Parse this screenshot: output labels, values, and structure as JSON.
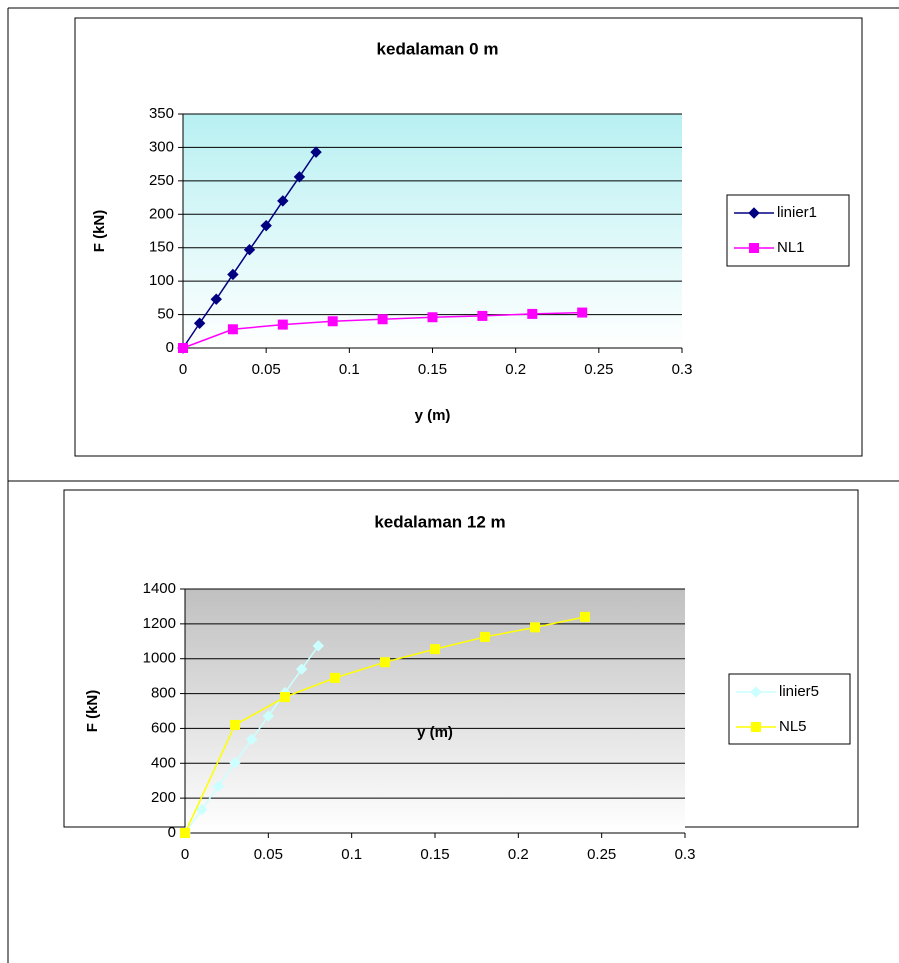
{
  "chart_data": [
    {
      "type": "line",
      "title": "kedalaman 0 m",
      "x_label": "y (m)",
      "y_label": "F (kN)",
      "xlim": [
        0,
        0.3
      ],
      "xticks": [
        0,
        0.05,
        0.1,
        0.15,
        0.2,
        0.25,
        0.3
      ],
      "ylim": [
        0,
        350
      ],
      "yticks": [
        0,
        50,
        100,
        150,
        200,
        250,
        300,
        350
      ],
      "grid": true,
      "legend": "right",
      "series": [
        {
          "name": "linier1",
          "color": "#000080",
          "marker": "diamond",
          "x": [
            0,
            0.01,
            0.02,
            0.03,
            0.04,
            0.05,
            0.06,
            0.07,
            0.08
          ],
          "values": [
            0,
            37,
            73,
            110,
            147,
            183,
            220,
            256,
            293
          ]
        },
        {
          "name": "NL1",
          "color": "#ff00ff",
          "marker": "square",
          "x": [
            0,
            0.03,
            0.06,
            0.09,
            0.12,
            0.15,
            0.18,
            0.21,
            0.24
          ],
          "values": [
            0,
            28,
            35,
            40,
            43,
            46,
            48,
            51,
            53
          ]
        }
      ]
    },
    {
      "type": "line",
      "title": "kedalaman 12 m",
      "x_label": "y (m)",
      "y_label": "F (kN)",
      "xlim": [
        0,
        0.3
      ],
      "xticks": [
        0,
        0.05,
        0.1,
        0.15,
        0.2,
        0.25,
        0.3
      ],
      "ylim": [
        0,
        1400
      ],
      "yticks": [
        0,
        200,
        400,
        600,
        800,
        1000,
        1200,
        1400
      ],
      "grid": true,
      "legend": "right",
      "series": [
        {
          "name": "linier5",
          "color": "#ccffff",
          "marker": "diamond",
          "x": [
            0,
            0.01,
            0.02,
            0.03,
            0.04,
            0.05,
            0.06,
            0.07,
            0.08
          ],
          "values": [
            0,
            134,
            268,
            403,
            537,
            671,
            805,
            940,
            1074
          ]
        },
        {
          "name": "NL5",
          "color": "#ffff00",
          "marker": "square",
          "x": [
            0,
            0.03,
            0.06,
            0.09,
            0.12,
            0.15,
            0.18,
            0.21,
            0.24
          ],
          "values": [
            0,
            620,
            780,
            890,
            980,
            1055,
            1125,
            1180,
            1240
          ]
        }
      ]
    }
  ]
}
